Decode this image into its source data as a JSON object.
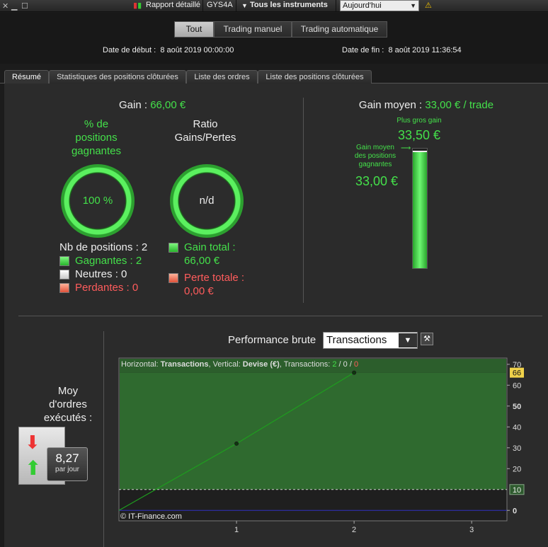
{
  "titlebar": {
    "report_label": "Rapport détaillé",
    "symbol": "GYS4A",
    "instruments": "Tous les instruments",
    "period": "Aujourd'hui"
  },
  "mode_buttons": [
    {
      "label": "Tout",
      "active": true
    },
    {
      "label": "Trading manuel",
      "active": false
    },
    {
      "label": "Trading automatique",
      "active": false
    }
  ],
  "dates": {
    "start_label": "Date de début :",
    "start_value": "8 août 2019 00:00:00",
    "end_label": "Date de fin :",
    "end_value": "8 août 2019 11:36:54"
  },
  "tabs": [
    {
      "label": "Résumé",
      "active": true
    },
    {
      "label": "Statistiques des positions clôturées",
      "active": false
    },
    {
      "label": "Liste des ordres",
      "active": false
    },
    {
      "label": "Liste des positions clôturées",
      "active": false
    }
  ],
  "summary": {
    "gain_label": "Gain :",
    "gain_value": "66,00 €",
    "pct_title": [
      "% de",
      "positions",
      "gagnantes"
    ],
    "pct_value": "100 %",
    "ratio_title": [
      "Ratio",
      "Gains/Pertes"
    ],
    "ratio_value": "n/d",
    "nb_positions": "Nb de positions : 2",
    "winning": "Gagnantes : 2",
    "neutral": "Neutres : 0",
    "losing": "Perdantes : 0",
    "gain_total_label": "Gain total :",
    "gain_total_value": "66,00 €",
    "perte_label": "Perte totale :",
    "perte_value": "0,00 €"
  },
  "average": {
    "label": "Gain moyen :",
    "value": "33,00 € / trade",
    "max_label": "Plus gros gain",
    "max_value": "33,50 €",
    "avg_pos_label": [
      "Gain moyen",
      "des positions",
      "gagnantes"
    ],
    "avg_pos_value": "33,00 €",
    "bar_fraction": 0.985
  },
  "orders": {
    "title": [
      "Moy",
      "d'ordres",
      "exécutés :"
    ],
    "value": "8,27",
    "unit": "par jour"
  },
  "performance": {
    "title": "Performance brute",
    "selector": "Transactions",
    "legend": {
      "prefix": "Horizontal: ",
      "horizontal": "Transactions",
      "mid": ", Vertical: ",
      "vertical": "Devise (€)",
      "tx_label": ", Transactions: ",
      "tx_win": "2",
      "slash1": " / ",
      "tx_neutral": "0",
      "slash2": " / ",
      "tx_loss": "0"
    },
    "copyright": "© IT-Finance.com"
  },
  "chart_data": {
    "type": "line",
    "x": [
      0,
      1,
      2
    ],
    "y": [
      0,
      32,
      66
    ],
    "xlim": [
      0,
      3.3
    ],
    "ylim": [
      -5,
      73
    ],
    "x_ticks": [
      "1",
      "2",
      "3"
    ],
    "y_ticks": [
      "70",
      "60",
      "50",
      "40",
      "30",
      "20",
      "0"
    ],
    "current_value": "66",
    "ref_value": "10",
    "colors": {
      "fill": "#2f6a2f",
      "line": "#1e9e1e",
      "point": "#0b3b0b",
      "zero": "#3030c0"
    }
  }
}
